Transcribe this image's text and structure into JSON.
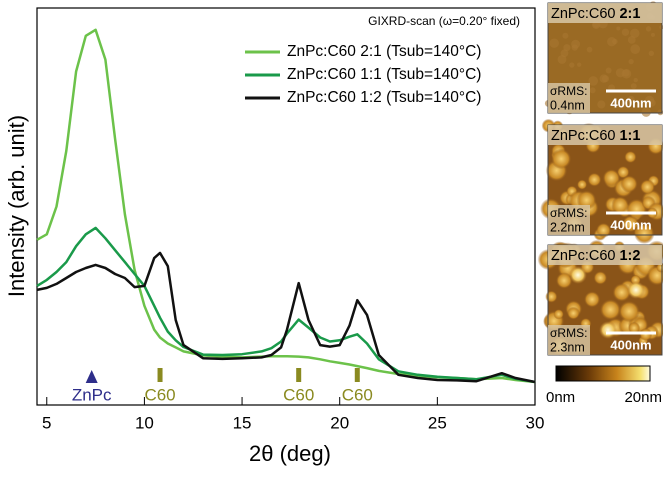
{
  "chart_data": {
    "type": "line",
    "annotation": "GIXRD-scan (ω=0.20° fixed)",
    "xlabel": "2θ (deg)",
    "ylabel": "Intensity (arb. unit)",
    "x": [
      4.5,
      5,
      5.5,
      6,
      6.5,
      7,
      7.5,
      8,
      8.5,
      9,
      9.5,
      10,
      10.5,
      10.8,
      11.2,
      11.6,
      12,
      13,
      14,
      15,
      16,
      16.5,
      17,
      17.3,
      17.9,
      18.4,
      19,
      19.5,
      20,
      20.5,
      20.9,
      21.4,
      22,
      23,
      24,
      25,
      26,
      27,
      28.3,
      29,
      30
    ],
    "series": [
      {
        "name": "ZnPc:C60 2:1 (Tsub=140°C)",
        "color": "#6cc24a",
        "values": [
          41.6,
          43,
          50,
          64,
          84,
          93,
          94.5,
          87,
          67,
          48,
          34,
          25,
          19,
          17,
          15.5,
          14.5,
          13.5,
          12.5,
          12.2,
          12,
          12.2,
          12.3,
          12.3,
          12.3,
          12.2,
          12,
          11.5,
          11,
          10.6,
          10.2,
          9.8,
          9.3,
          8.6,
          7.8,
          7.3,
          7,
          6.8,
          6.5,
          6.8,
          6.3,
          5.8
        ]
      },
      {
        "name": "ZnPc:C60 1:1 (Tsub=140°C)",
        "color": "#1a9a4a",
        "values": [
          30,
          31.5,
          33.5,
          36,
          40,
          43,
          44.6,
          42,
          39,
          36,
          33,
          30,
          25,
          22,
          18.5,
          16.3,
          14.6,
          12.7,
          12.6,
          12.8,
          13.5,
          14.3,
          16,
          18,
          21.5,
          19.5,
          17,
          16,
          16.3,
          17.2,
          17.8,
          15.5,
          11.5,
          8.5,
          7.6,
          7.1,
          6.8,
          6.5,
          7.6,
          6.6,
          5.8
        ]
      },
      {
        "name": "ZnPc:C60 1:2 (Tsub=140°C)",
        "color": "#111111",
        "values": [
          29,
          29.5,
          30.5,
          32,
          33.5,
          34.5,
          35.3,
          34.5,
          33,
          32,
          29.7,
          30,
          37,
          38.3,
          35,
          21.4,
          15.1,
          11.8,
          11.6,
          11.8,
          12,
          12.6,
          14.5,
          19,
          30.7,
          21.4,
          15.1,
          14.7,
          15.1,
          20,
          26.4,
          22.7,
          12.6,
          7.6,
          6.8,
          6.3,
          6.2,
          6,
          8,
          6.8,
          5.8
        ]
      }
    ],
    "xlim": [
      4.5,
      30
    ],
    "xticks": [
      5,
      10,
      15,
      20,
      25,
      30
    ],
    "ylim": [
      0,
      100
    ],
    "peaks": [
      {
        "text": "ZnPc",
        "x": 7.3,
        "color": "#2e2e8a"
      },
      {
        "text": "C60",
        "x": 10.8,
        "color": "#8a8a20"
      },
      {
        "text": "C60",
        "x": 17.9,
        "color": "#8a8a20"
      },
      {
        "text": "C60",
        "x": 20.9,
        "color": "#8a8a20"
      }
    ]
  },
  "afm": {
    "panels": [
      {
        "sample": "ZnPc:C60",
        "ratio": "2:1",
        "rms_label": "σRMS:",
        "rms": "0.4nm",
        "scale": "400nm"
      },
      {
        "sample": "ZnPc:C60",
        "ratio": "1:1",
        "rms_label": "σRMS:",
        "rms": "2.2nm",
        "scale": "400nm"
      },
      {
        "sample": "ZnPc:C60",
        "ratio": "1:2",
        "rms_label": "σRMS:",
        "rms": "2.3nm",
        "scale": "400nm"
      }
    ],
    "colorbar": {
      "min": "0nm",
      "max": "20nm"
    }
  }
}
